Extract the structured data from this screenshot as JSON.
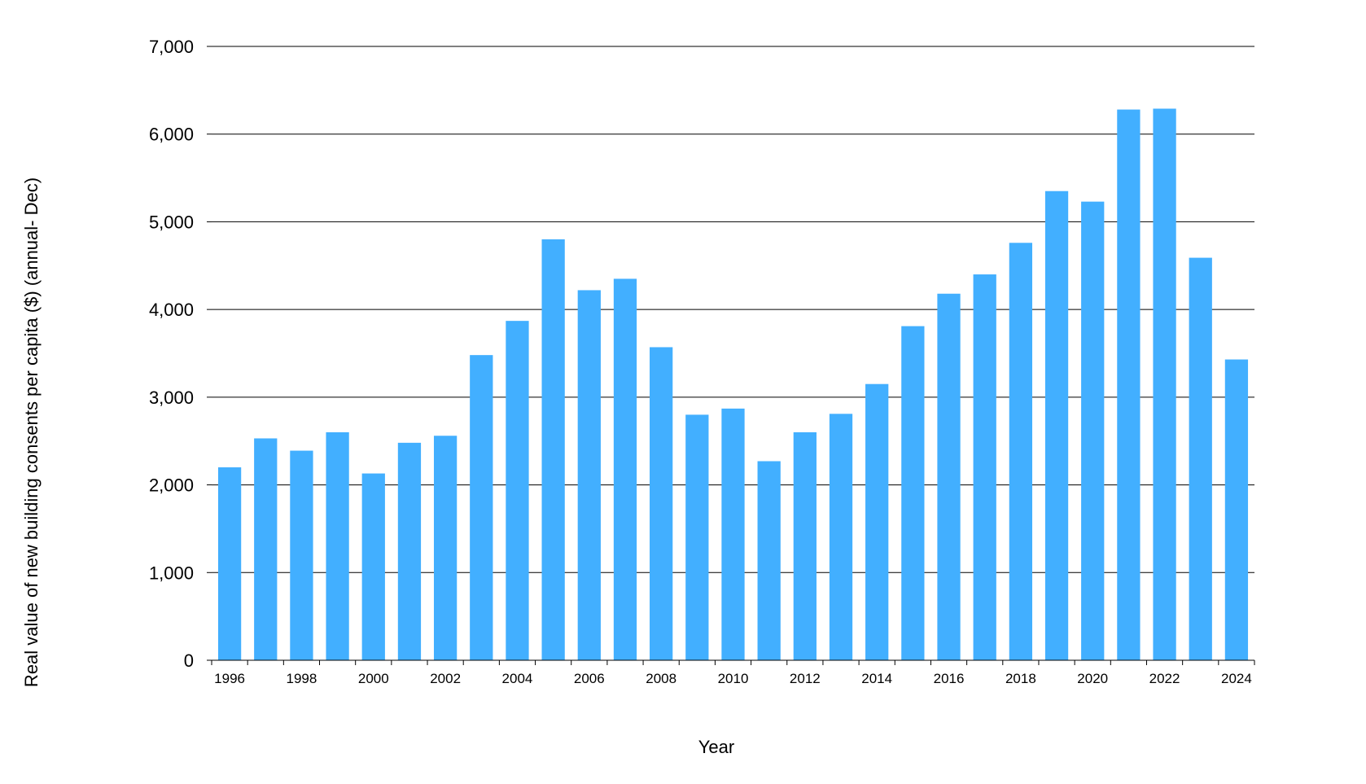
{
  "chart_data": {
    "type": "bar",
    "title": "",
    "xlabel": "Year",
    "ylabel": "Real value of new building  consents per capita ($) (annual- Dec)",
    "ylim": [
      0,
      7000
    ],
    "yticks": [
      0,
      1000,
      2000,
      3000,
      4000,
      5000,
      6000,
      7000
    ],
    "ytick_labels": [
      "0",
      "1,000",
      "2,000",
      "3,000",
      "4,000",
      "5,000",
      "6,000",
      "7,000"
    ],
    "xtick_labels_shown": [
      "1996",
      "1998",
      "2000",
      "2002",
      "2004",
      "2006",
      "2008",
      "2010",
      "2012",
      "2014",
      "2016",
      "2018",
      "2020",
      "2022",
      "2024"
    ],
    "grid": "horizontal",
    "legend": "none",
    "bar_color": "#42AFFF",
    "categories": [
      "1996",
      "1997",
      "1998",
      "1999",
      "2000",
      "2001",
      "2002",
      "2003",
      "2004",
      "2005",
      "2006",
      "2007",
      "2008",
      "2009",
      "2010",
      "2011",
      "2012",
      "2013",
      "2014",
      "2015",
      "2016",
      "2017",
      "2018",
      "2019",
      "2020",
      "2021",
      "2022",
      "2023",
      "2024"
    ],
    "values": [
      2200,
      2530,
      2390,
      2600,
      2130,
      2480,
      2560,
      3480,
      3870,
      4800,
      4220,
      4350,
      3570,
      2800,
      2870,
      2270,
      2600,
      2810,
      3150,
      3810,
      4180,
      4400,
      4760,
      5350,
      5230,
      6280,
      6290,
      4590,
      3430
    ]
  }
}
